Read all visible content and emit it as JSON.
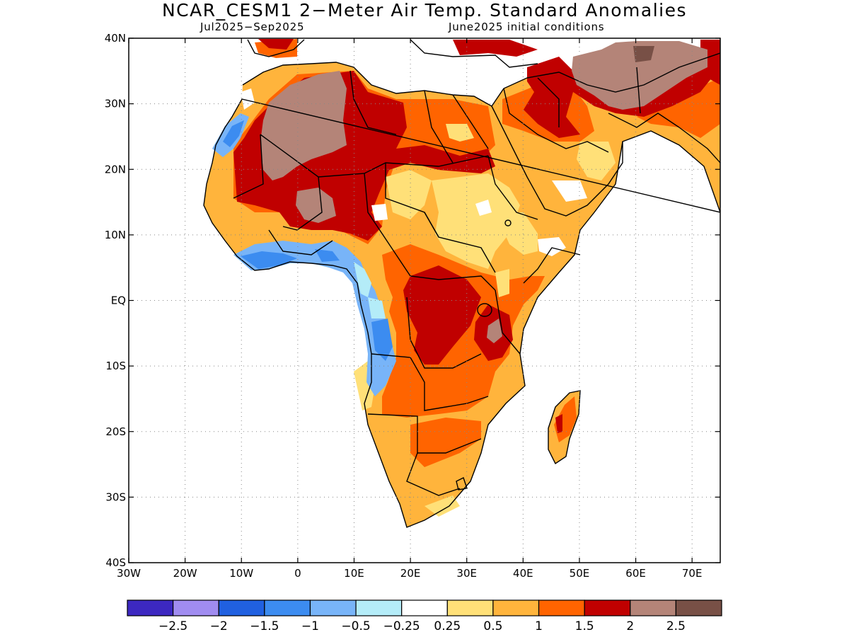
{
  "title": "NCAR_CESM1 2−Meter Air Temp. Standard Anomalies",
  "subtitle_left": "Jul2025−Sep2025",
  "subtitle_right": "June2025 initial conditions",
  "map": {
    "lon_range": [
      -30,
      75
    ],
    "lat_range": [
      -40,
      40
    ],
    "lat_ticks": [
      {
        "value": 40,
        "label": "40N"
      },
      {
        "value": 30,
        "label": "30N"
      },
      {
        "value": 20,
        "label": "20N"
      },
      {
        "value": 10,
        "label": "10N"
      },
      {
        "value": 0,
        "label": "EQ"
      },
      {
        "value": -10,
        "label": "10S"
      },
      {
        "value": -20,
        "label": "20S"
      },
      {
        "value": -30,
        "label": "30S"
      },
      {
        "value": -40,
        "label": "40S"
      }
    ],
    "lon_ticks": [
      {
        "value": -30,
        "label": "30W"
      },
      {
        "value": -20,
        "label": "20W"
      },
      {
        "value": -10,
        "label": "10W"
      },
      {
        "value": 0,
        "label": "0"
      },
      {
        "value": 10,
        "label": "10E"
      },
      {
        "value": 20,
        "label": "20E"
      },
      {
        "value": 30,
        "label": "30E"
      },
      {
        "value": 40,
        "label": "40E"
      },
      {
        "value": 50,
        "label": "50E"
      },
      {
        "value": 60,
        "label": "60E"
      },
      {
        "value": 70,
        "label": "70E"
      }
    ],
    "grid": "dotted"
  },
  "colorbar": {
    "colors": [
      "#3c28c0",
      "#a08cf0",
      "#2060e0",
      "#3c8cf0",
      "#78b4f8",
      "#b4ecf8",
      "#ffffff",
      "#ffe078",
      "#ffb43c",
      "#ff6400",
      "#c00000",
      "#b48478",
      "#785046"
    ],
    "labels": [
      "−2.5",
      "−2",
      "−1.5",
      "−1",
      "−0.5",
      "−0.25",
      "0.25",
      "0.5",
      "1",
      "1.5",
      "2",
      "2.5"
    ]
  }
}
